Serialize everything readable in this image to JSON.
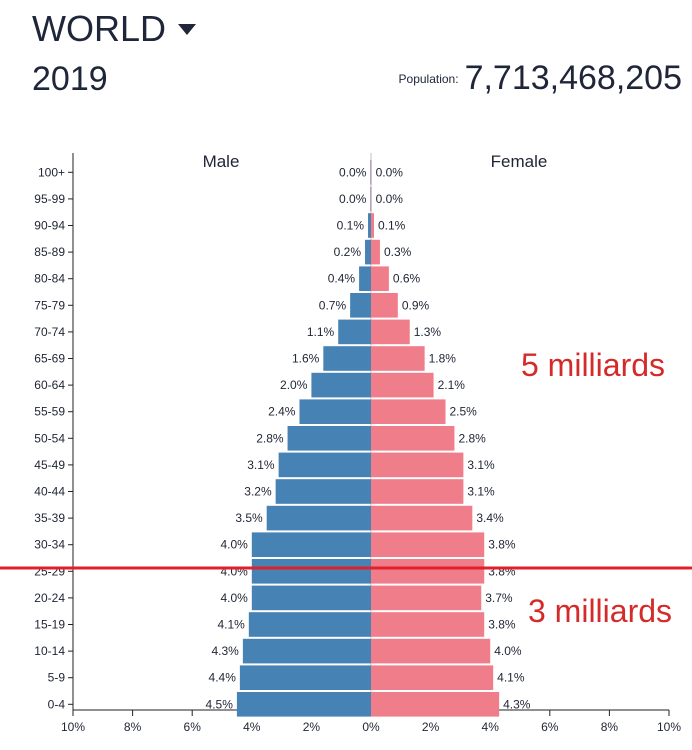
{
  "header": {
    "region": "WORLD",
    "year": "2019",
    "population_label": "Population:",
    "population_value": "7,713,468,205"
  },
  "annotations": {
    "top_note": "5 milliards",
    "bottom_note": "3 milliards",
    "line_color": "#e0202a"
  },
  "colors": {
    "male": "#4682b4",
    "female": "#f07d8a",
    "annotation_text": "#d42a2a"
  },
  "chart_data": {
    "type": "bar",
    "orientation": "horizontal-pyramid",
    "legend": [
      "Male",
      "Female"
    ],
    "categories": [
      "100+",
      "95-99",
      "90-94",
      "85-89",
      "80-84",
      "75-79",
      "70-74",
      "65-69",
      "60-64",
      "55-59",
      "50-54",
      "45-49",
      "40-44",
      "35-39",
      "30-34",
      "25-29",
      "20-24",
      "15-19",
      "10-14",
      "5-9",
      "0-4"
    ],
    "series": [
      {
        "name": "Male",
        "values": [
          0.0,
          0.0,
          0.1,
          0.2,
          0.4,
          0.7,
          1.1,
          1.6,
          2.0,
          2.4,
          2.8,
          3.1,
          3.2,
          3.5,
          4.0,
          4.0,
          4.0,
          4.1,
          4.3,
          4.4,
          4.5
        ]
      },
      {
        "name": "Female",
        "values": [
          0.0,
          0.0,
          0.1,
          0.3,
          0.6,
          0.9,
          1.3,
          1.8,
          2.1,
          2.5,
          2.8,
          3.1,
          3.1,
          3.4,
          3.8,
          3.8,
          3.7,
          3.8,
          4.0,
          4.1,
          4.3
        ]
      }
    ],
    "xlim": [
      -10,
      10
    ],
    "xticks": [
      "10%",
      "8%",
      "6%",
      "4%",
      "2%",
      "0%",
      "2%",
      "4%",
      "6%",
      "8%",
      "10%"
    ],
    "unit": "%"
  }
}
